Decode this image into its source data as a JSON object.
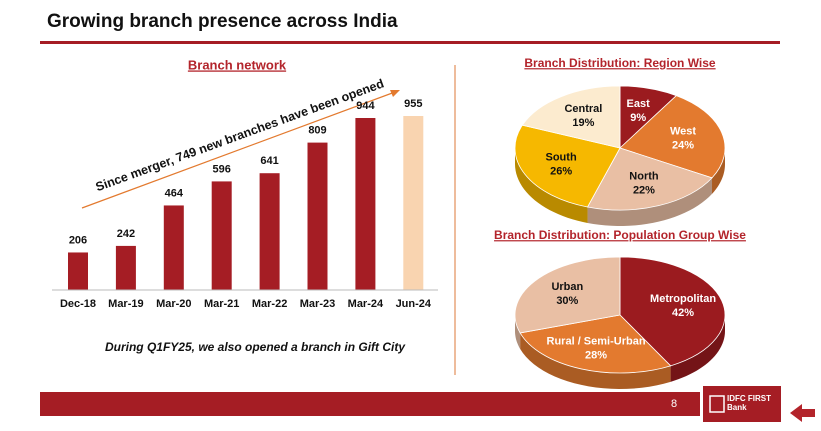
{
  "title": "Growing branch presence across India",
  "chart_data": [
    {
      "type": "bar",
      "title": "Branch network",
      "categories": [
        "Dec-18",
        "Mar-19",
        "Mar-20",
        "Mar-21",
        "Mar-22",
        "Mar-23",
        "Mar-24",
        "Jun-24"
      ],
      "values": [
        206,
        242,
        464,
        596,
        641,
        809,
        944,
        955
      ],
      "colors": [
        "#a51d24",
        "#a51d24",
        "#a51d24",
        "#a51d24",
        "#a51d24",
        "#a51d24",
        "#a51d24",
        "#f9d4b0"
      ],
      "annotation": "Since merger, 749 new branches have been opened",
      "note": "During Q1FY25, we also opened a branch in Gift City"
    },
    {
      "type": "pie",
      "title": "Branch Distribution: Region Wise",
      "categories": [
        "East",
        "West",
        "North",
        "South",
        "Central"
      ],
      "values": [
        9,
        24,
        22,
        26,
        19
      ],
      "value_labels": [
        "9%",
        "24%",
        "22%",
        "26%",
        "19%"
      ],
      "colors": [
        "#9b1b1f",
        "#e37a2f",
        "#e9bfa4",
        "#f6b800",
        "#fcebcf"
      ]
    },
    {
      "type": "pie",
      "title": "Branch Distribution: Population Group Wise",
      "categories": [
        "Metropolitan",
        "Rural / Semi-Urban",
        "Urban"
      ],
      "values": [
        42,
        28,
        30
      ],
      "value_labels": [
        "42%",
        "28%",
        "30%"
      ],
      "colors": [
        "#9b1b1f",
        "#e37a2f",
        "#e9bfa4"
      ]
    }
  ],
  "page_number": "8",
  "logo": "IDFC FIRST Bank"
}
